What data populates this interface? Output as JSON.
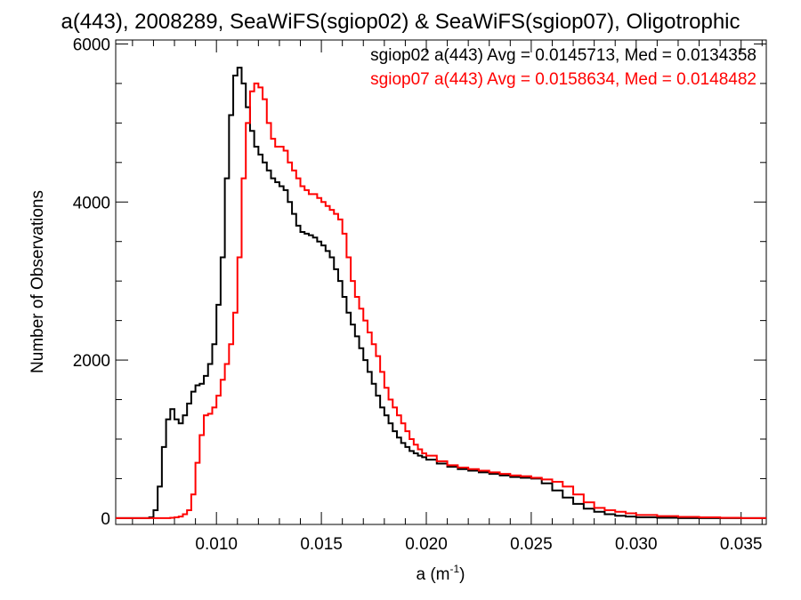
{
  "chart_data": {
    "type": "line",
    "title": "a(443), 2008289, SeaWiFS(sgiop02) & SeaWiFS(sgiop07), Oligotrophic",
    "xlabel": "a (m",
    "xlabel_sup": "-1",
    "xlabel_tail": ")",
    "ylabel": "Number of Observations",
    "xlim": [
      0.0052,
      0.0362
    ],
    "ylim": [
      -80,
      6050
    ],
    "xticks": [
      {
        "value": 0.01,
        "label": "0.010"
      },
      {
        "value": 0.015,
        "label": "0.015"
      },
      {
        "value": 0.02,
        "label": "0.020"
      },
      {
        "value": 0.025,
        "label": "0.025"
      },
      {
        "value": 0.03,
        "label": "0.030"
      },
      {
        "value": 0.035,
        "label": "0.035"
      }
    ],
    "yticks": [
      {
        "value": 0,
        "label": "0"
      },
      {
        "value": 2000,
        "label": "2000"
      },
      {
        "value": 4000,
        "label": "4000"
      },
      {
        "value": 6000,
        "label": "6000"
      }
    ],
    "grid": false,
    "legend_position": "top-right",
    "series": [
      {
        "name": "sgiop02",
        "color": "#000000",
        "legend": "sgiop02 a(443) Avg = 0.0145713, Med = 0.0134358",
        "x": [
          0.0052,
          0.0068,
          0.007,
          0.0072,
          0.0074,
          0.0076,
          0.0078,
          0.008,
          0.0082,
          0.0084,
          0.0086,
          0.0088,
          0.009,
          0.0092,
          0.0094,
          0.0096,
          0.0098,
          0.01,
          0.0102,
          0.0104,
          0.0106,
          0.0108,
          0.011,
          0.0112,
          0.0114,
          0.0116,
          0.0118,
          0.012,
          0.0122,
          0.0124,
          0.0126,
          0.0128,
          0.013,
          0.0132,
          0.0134,
          0.0136,
          0.0138,
          0.014,
          0.0142,
          0.0144,
          0.0146,
          0.0148,
          0.015,
          0.0152,
          0.0154,
          0.0156,
          0.0158,
          0.016,
          0.0162,
          0.0164,
          0.0166,
          0.0168,
          0.017,
          0.0172,
          0.0174,
          0.0176,
          0.0178,
          0.018,
          0.0182,
          0.0184,
          0.0186,
          0.0188,
          0.019,
          0.0192,
          0.0194,
          0.0196,
          0.0198,
          0.02,
          0.0205,
          0.021,
          0.0215,
          0.022,
          0.0225,
          0.023,
          0.0235,
          0.024,
          0.0245,
          0.025,
          0.0255,
          0.026,
          0.0265,
          0.027,
          0.0275,
          0.028,
          0.0285,
          0.029,
          0.0295,
          0.03,
          0.031,
          0.032,
          0.033,
          0.034,
          0.035,
          0.0362
        ],
        "y": [
          0,
          10,
          100,
          400,
          900,
          1250,
          1380,
          1250,
          1200,
          1300,
          1450,
          1600,
          1680,
          1700,
          1800,
          1950,
          2200,
          2700,
          3300,
          4300,
          5100,
          5600,
          5700,
          5500,
          5200,
          4900,
          4700,
          4600,
          4500,
          4400,
          4300,
          4250,
          4200,
          4150,
          4000,
          3850,
          3700,
          3620,
          3600,
          3580,
          3550,
          3500,
          3450,
          3380,
          3300,
          3150,
          3000,
          2800,
          2600,
          2450,
          2300,
          2150,
          2000,
          1850,
          1700,
          1550,
          1400,
          1300,
          1200,
          1100,
          1020,
          950,
          900,
          850,
          820,
          790,
          770,
          740,
          690,
          650,
          620,
          600,
          580,
          560,
          540,
          520,
          510,
          500,
          440,
          350,
          260,
          180,
          120,
          80,
          50,
          30,
          20,
          10,
          5,
          0,
          0,
          0,
          0,
          0
        ]
      },
      {
        "name": "sgiop07",
        "color": "#ff0000",
        "legend": "sgiop07 a(443) Avg = 0.0158634, Med = 0.0148482",
        "x": [
          0.0052,
          0.0078,
          0.008,
          0.0082,
          0.0084,
          0.0086,
          0.0088,
          0.009,
          0.0092,
          0.0094,
          0.0096,
          0.0098,
          0.01,
          0.0102,
          0.0104,
          0.0106,
          0.0108,
          0.011,
          0.0112,
          0.0114,
          0.0116,
          0.0118,
          0.012,
          0.0122,
          0.0124,
          0.0126,
          0.0128,
          0.013,
          0.0132,
          0.0134,
          0.0136,
          0.0138,
          0.014,
          0.0142,
          0.0144,
          0.0146,
          0.0148,
          0.015,
          0.0152,
          0.0154,
          0.0156,
          0.0158,
          0.016,
          0.0162,
          0.0164,
          0.0166,
          0.0168,
          0.017,
          0.0172,
          0.0174,
          0.0176,
          0.0178,
          0.018,
          0.0182,
          0.0184,
          0.0186,
          0.0188,
          0.019,
          0.0192,
          0.0194,
          0.0196,
          0.0198,
          0.02,
          0.0205,
          0.021,
          0.0215,
          0.022,
          0.0225,
          0.023,
          0.0235,
          0.024,
          0.0245,
          0.025,
          0.0255,
          0.026,
          0.0265,
          0.027,
          0.0275,
          0.028,
          0.0285,
          0.029,
          0.0295,
          0.03,
          0.031,
          0.032,
          0.033,
          0.034,
          0.035,
          0.0362
        ],
        "y": [
          0,
          5,
          10,
          20,
          50,
          100,
          300,
          700,
          1050,
          1300,
          1320,
          1400,
          1550,
          1750,
          1950,
          2200,
          2600,
          3300,
          4300,
          5000,
          5400,
          5500,
          5450,
          5300,
          5000,
          4800,
          4700,
          4700,
          4650,
          4500,
          4400,
          4300,
          4200,
          4150,
          4100,
          4100,
          4050,
          4000,
          3950,
          3900,
          3850,
          3780,
          3600,
          3300,
          3000,
          2800,
          2650,
          2500,
          2350,
          2200,
          2050,
          1850,
          1650,
          1500,
          1400,
          1300,
          1200,
          1100,
          1000,
          930,
          870,
          820,
          790,
          720,
          670,
          640,
          620,
          600,
          580,
          560,
          540,
          530,
          510,
          490,
          460,
          400,
          300,
          200,
          130,
          100,
          80,
          60,
          40,
          25,
          15,
          10,
          5,
          0,
          0
        ]
      }
    ]
  }
}
